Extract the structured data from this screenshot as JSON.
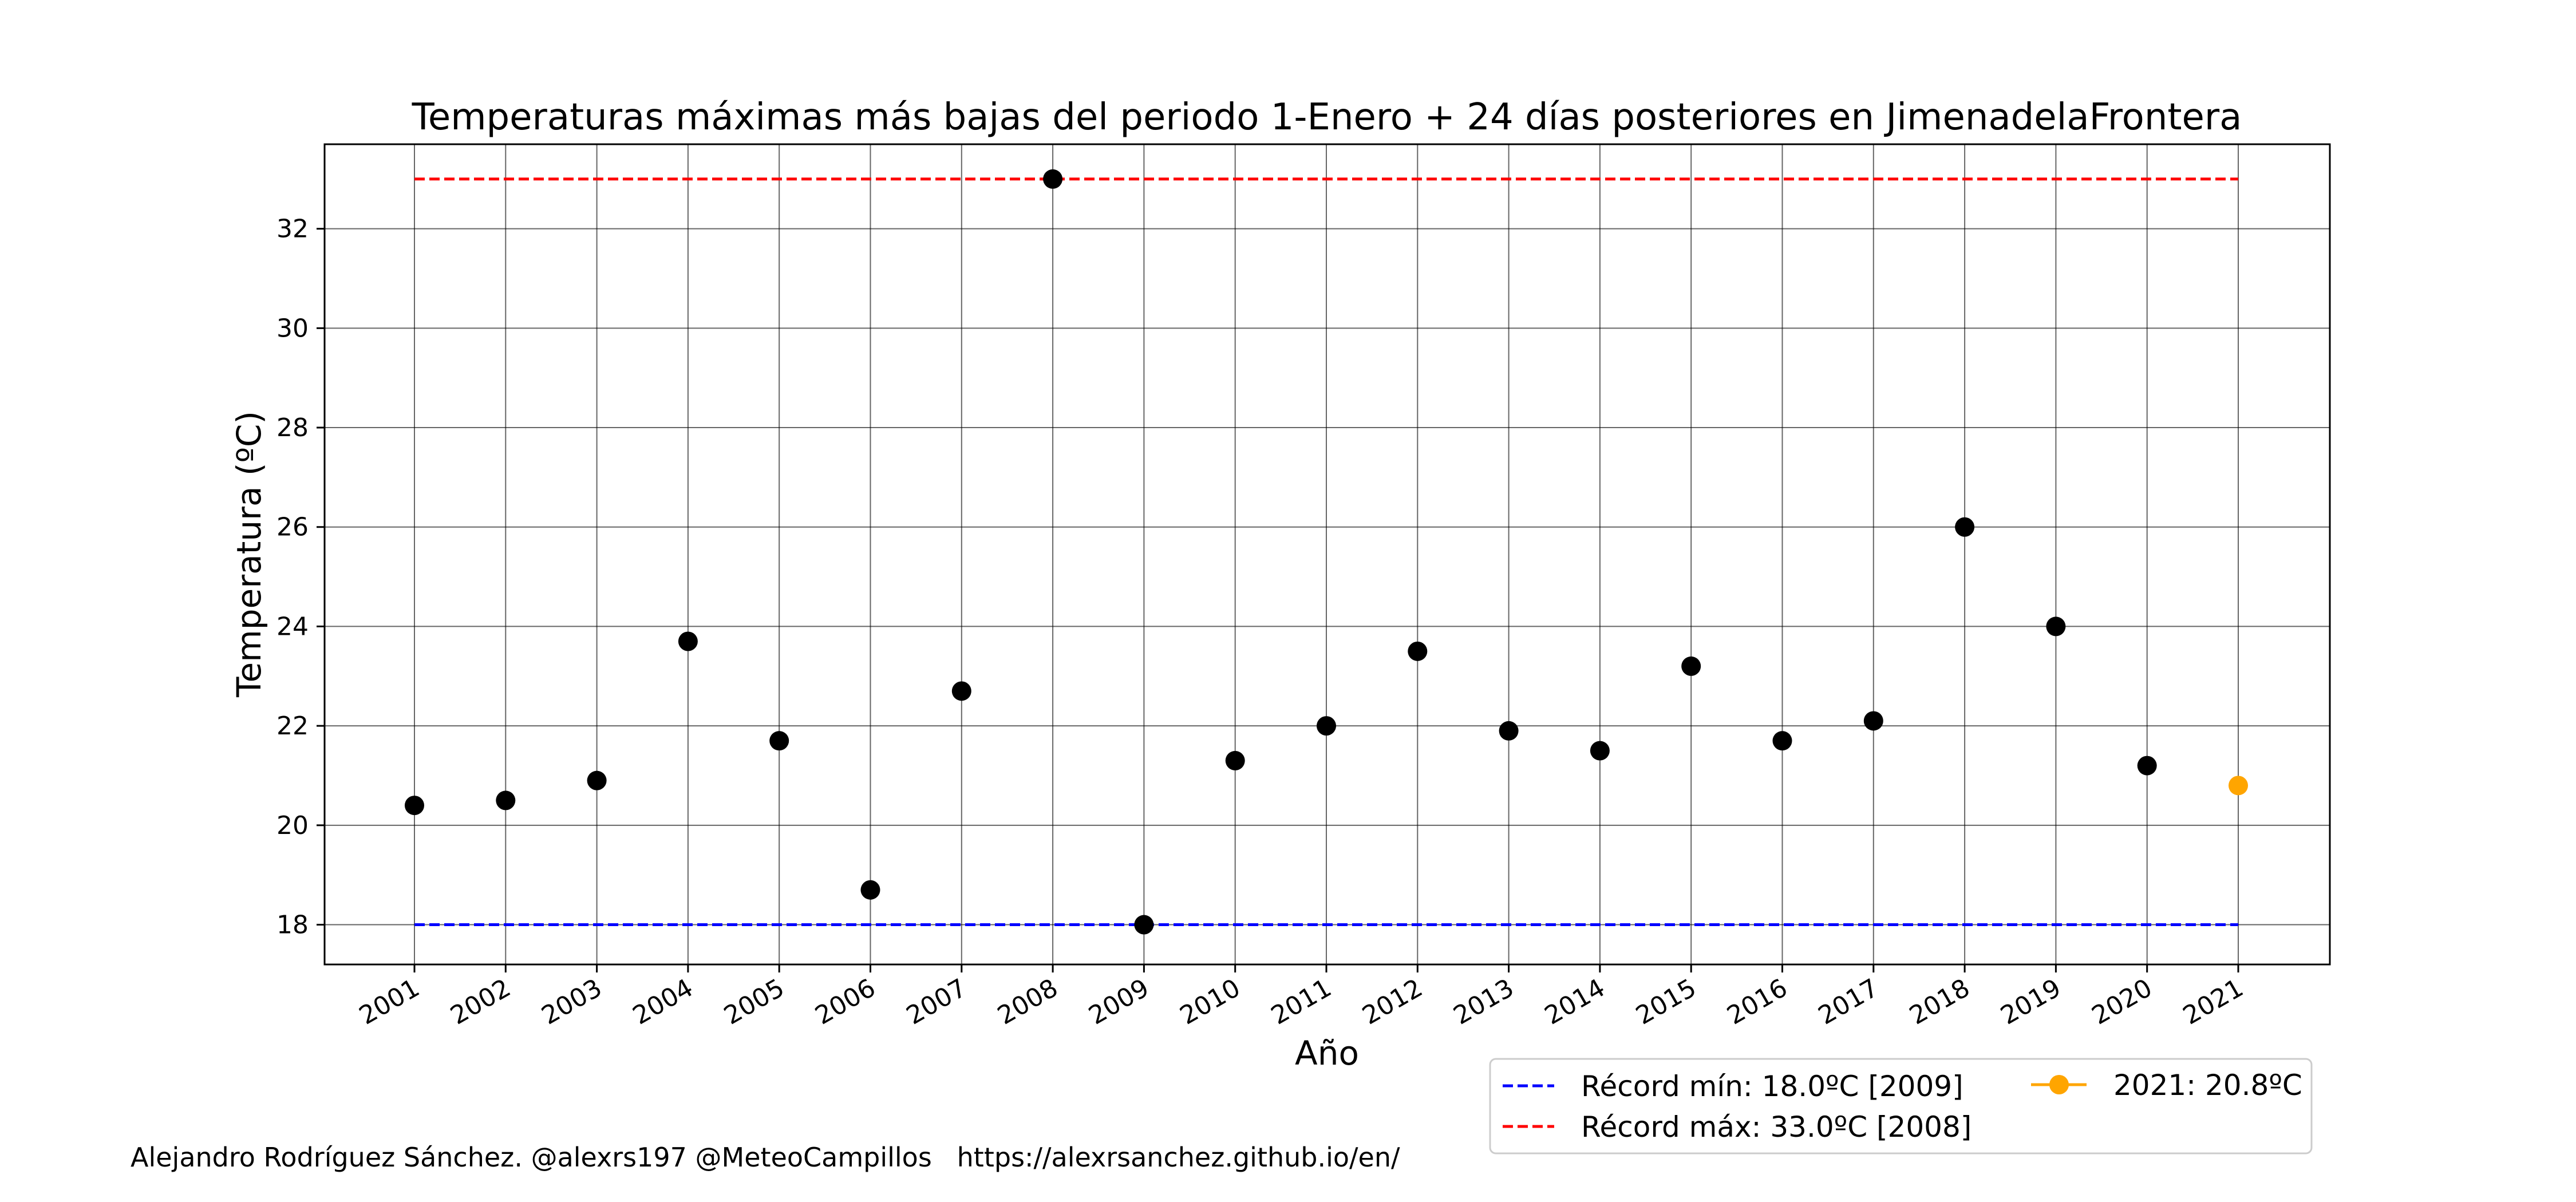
{
  "chart_data": {
    "type": "scatter",
    "title": "Temperaturas máximas más bajas del periodo 1-Enero + 24 días posteriores en JimenadelaFrontera",
    "xlabel": "Año",
    "ylabel": "Temperatura (ºC)",
    "ylim": [
      17.2,
      33.7
    ],
    "yticks": [
      18,
      20,
      22,
      24,
      26,
      28,
      30,
      32
    ],
    "grid": true,
    "legend_placement": "below-right",
    "x": [
      "2001",
      "2002",
      "2003",
      "2004",
      "2005",
      "2006",
      "2007",
      "2008",
      "2009",
      "2010",
      "2011",
      "2012",
      "2013",
      "2014",
      "2015",
      "2016",
      "2017",
      "2018",
      "2019",
      "2020",
      "2021"
    ],
    "series": [
      {
        "color": "#000000",
        "values": [
          20.4,
          20.5,
          20.9,
          23.7,
          21.7,
          18.7,
          22.7,
          33.0,
          18.0,
          21.3,
          22.0,
          23.5,
          21.9,
          21.5,
          23.2,
          21.7,
          22.1,
          26.0,
          24.0,
          21.2,
          null
        ]
      },
      {
        "name": "2021: 20.8ºC",
        "color": "#ffa500",
        "x": "2021",
        "value": 20.8
      }
    ],
    "reference_lines": [
      {
        "name": "Récord mín: 18.0ºC [2009]",
        "value": 18.0,
        "color": "#0000ff",
        "style": "dashed"
      },
      {
        "name": "Récord máx: 33.0ºC [2008]",
        "value": 33.0,
        "color": "#ff0000",
        "style": "dashed"
      }
    ]
  },
  "footer": {
    "credit": "Alejandro Rodríguez Sánchez. @alexrs197 @MeteoCampillos   https://alexrsanchez.github.io/en/"
  }
}
